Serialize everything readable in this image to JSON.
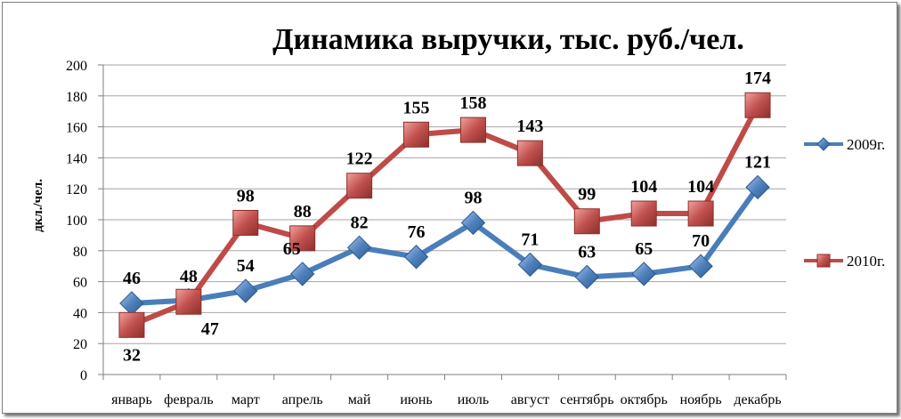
{
  "chart_data": {
    "type": "line",
    "title": "Динамика выручки, тыс. руб./чел.",
    "ylabel": "дкл./чел.",
    "xlabel": "",
    "ylim": [
      0,
      200
    ],
    "y_ticks": [
      0,
      20,
      40,
      60,
      80,
      100,
      120,
      140,
      160,
      180,
      200
    ],
    "grid": true,
    "legend_position": "right",
    "categories": [
      "январь",
      "февраль",
      "март",
      "апрель",
      "май",
      "июнь",
      "июль",
      "август",
      "сентябрь",
      "октябрь",
      "ноябрь",
      "декабрь"
    ],
    "series": [
      {
        "name": "2009г.",
        "values": [
          46,
          48,
          54,
          65,
          82,
          76,
          98,
          71,
          63,
          65,
          70,
          121
        ],
        "color": "#4a7ebb",
        "marker": "diamond"
      },
      {
        "name": "2010г.",
        "values": [
          32,
          47,
          98,
          88,
          122,
          155,
          158,
          143,
          99,
          104,
          104,
          174
        ],
        "color": "#be4b48",
        "marker": "square"
      }
    ]
  }
}
